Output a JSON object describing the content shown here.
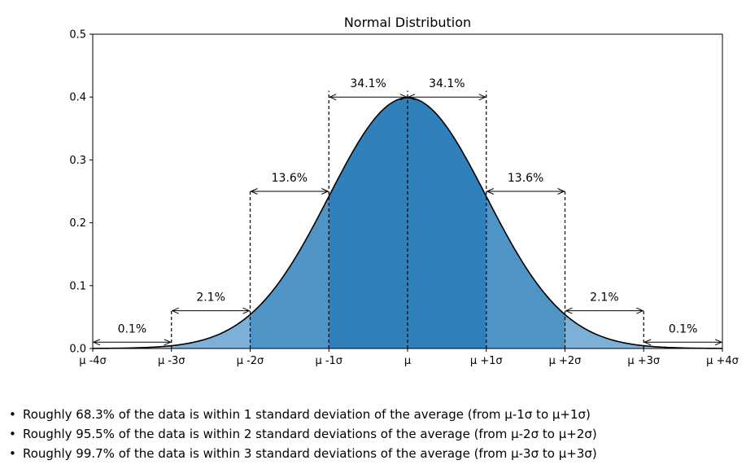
{
  "chart_data": {
    "type": "area",
    "title": "Normal Distribution",
    "xlabel": "",
    "ylabel": "",
    "xlim": [
      -4,
      4
    ],
    "ylim": [
      0,
      0.5
    ],
    "grid": false,
    "y_ticks": [
      "0.0",
      "0.1",
      "0.2",
      "0.3",
      "0.4",
      "0.5"
    ],
    "x_ticks": [
      {
        "x": -4,
        "label": "μ -4σ"
      },
      {
        "x": -3,
        "label": "μ -3σ"
      },
      {
        "x": -2,
        "label": "μ -2σ"
      },
      {
        "x": -1,
        "label": "μ -1σ"
      },
      {
        "x": 0,
        "label": "μ"
      },
      {
        "x": 1,
        "label": "μ +1σ"
      },
      {
        "x": 2,
        "label": "μ +2σ"
      },
      {
        "x": 3,
        "label": "μ +3σ"
      },
      {
        "x": 4,
        "label": "μ +4σ"
      }
    ],
    "regions": [
      {
        "from": -4,
        "to": -3,
        "color": "#a6c8e3"
      },
      {
        "from": -3,
        "to": -2,
        "color": "#7cb0d6"
      },
      {
        "from": -2,
        "to": -1,
        "color": "#4f94c6"
      },
      {
        "from": -1,
        "to": 1,
        "color": "#2f80bb"
      },
      {
        "from": 1,
        "to": 2,
        "color": "#4f94c6"
      },
      {
        "from": 2,
        "to": 3,
        "color": "#7cb0d6"
      },
      {
        "from": 3,
        "to": 4,
        "color": "#a6c8e3"
      }
    ],
    "annotations": [
      {
        "label": "0.1%",
        "from": -4,
        "to": -3,
        "y": 0.01
      },
      {
        "label": "2.1%",
        "from": -3,
        "to": -2,
        "y": 0.06
      },
      {
        "label": "13.6%",
        "from": -2,
        "to": -1,
        "y": 0.25
      },
      {
        "label": "34.1%",
        "from": -1,
        "to": 0,
        "y": 0.4
      },
      {
        "label": "34.1%",
        "from": 0,
        "to": 1,
        "y": 0.4
      },
      {
        "label": "13.6%",
        "from": 1,
        "to": 2,
        "y": 0.25
      },
      {
        "label": "2.1%",
        "from": 2,
        "to": 3,
        "y": 0.06
      },
      {
        "label": "0.1%",
        "from": 3,
        "to": 4,
        "y": 0.01
      }
    ],
    "dashed_lines": [
      {
        "x": -3,
        "top": 0.06
      },
      {
        "x": -2,
        "top": 0.25
      },
      {
        "x": -1,
        "top": 0.41
      },
      {
        "x": 0,
        "top": 0.41
      },
      {
        "x": 1,
        "top": 0.41
      },
      {
        "x": 2,
        "top": 0.25
      },
      {
        "x": 3,
        "top": 0.06
      }
    ],
    "colors": {
      "curve": "#000000",
      "axis": "#000000"
    }
  },
  "notes": [
    "Roughly 68.3% of the data is within 1 standard deviation of the average (from μ-1σ to μ+1σ)",
    "Roughly 95.5% of the data is within 2 standard deviations of the average (from μ-2σ to μ+2σ)",
    "Roughly 99.7% of the data is within 3 standard deviations of the average (from μ-3σ to μ+3σ)"
  ]
}
